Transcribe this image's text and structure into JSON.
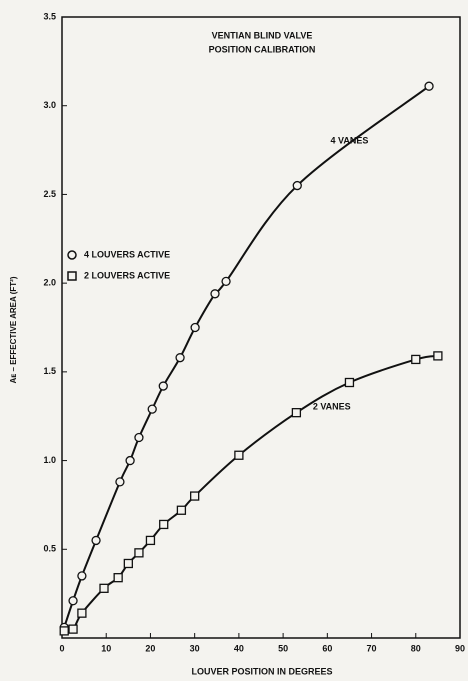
{
  "chart_data": {
    "type": "line",
    "title": [
      "VENTIAN BLIND VALVE",
      "POSITION CALIBRATION"
    ],
    "xlabel": "LOUVER POSITION IN DEGREES",
    "ylabel": "Aᴇ – EFFECTIVE AREA (FT²)",
    "xlim": [
      0,
      90
    ],
    "xticks": [
      0,
      10,
      20,
      30,
      40,
      50,
      60,
      70,
      80,
      90
    ],
    "ylim": [
      0,
      3.5
    ],
    "yticks": [
      {
        "value": 0.5,
        "label": "0.5"
      },
      {
        "value": 1,
        "label": "1.0"
      },
      {
        "value": 1.5,
        "label": "1.5"
      },
      {
        "value": 2,
        "label": "2.0"
      },
      {
        "value": 2.5,
        "label": "2.5"
      },
      {
        "value": 3,
        "label": "3.0"
      },
      {
        "value": 3.5,
        "label": "3.5"
      }
    ],
    "series": [
      {
        "name": "4 LOUVERS ACTIVE",
        "marker": "circle",
        "color": "#111111",
        "x": [
          0.5,
          2.5,
          4.5,
          7.7,
          13.1,
          15.4,
          17.4,
          20.4,
          22.9,
          26.7,
          30.1,
          34.6,
          37.1,
          53.2,
          83
        ],
        "values": [
          0.06,
          0.21,
          0.35,
          0.55,
          0.88,
          1.0,
          1.13,
          1.29,
          1.42,
          1.58,
          1.75,
          1.94,
          2.01,
          2.55,
          3.11
        ]
      },
      {
        "name": "2 LOUVERS ACTIVE",
        "marker": "square",
        "color": "#111111",
        "x": [
          0.5,
          2.5,
          4.5,
          9.5,
          12.7,
          15,
          17.4,
          20,
          23,
          27,
          30,
          40,
          53,
          65,
          80,
          85
        ],
        "values": [
          0.04,
          0.05,
          0.14,
          0.28,
          0.34,
          0.42,
          0.48,
          0.55,
          0.64,
          0.72,
          0.8,
          1.03,
          1.27,
          1.44,
          1.57,
          1.59
        ]
      }
    ],
    "annotations": [
      {
        "text": "4 VANES",
        "x": 65,
        "y": 2.8
      },
      {
        "text": "2 VANES",
        "x": 61,
        "y": 1.3
      }
    ]
  }
}
